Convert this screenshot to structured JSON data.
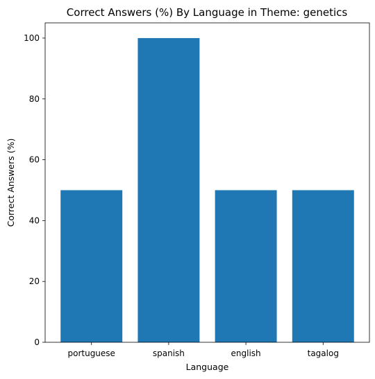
{
  "chart_data": {
    "type": "bar",
    "title": "Correct Answers (%) By Language in Theme: genetics",
    "xlabel": "Language",
    "ylabel": "Correct Answers (%)",
    "categories": [
      "portuguese",
      "spanish",
      "english",
      "tagalog"
    ],
    "values": [
      50,
      100,
      50,
      50
    ],
    "ylim": [
      0,
      105
    ],
    "yticks": [
      0,
      20,
      40,
      60,
      80,
      100
    ],
    "grid": false,
    "legend": "none",
    "bar_color": "#1f77b4"
  }
}
